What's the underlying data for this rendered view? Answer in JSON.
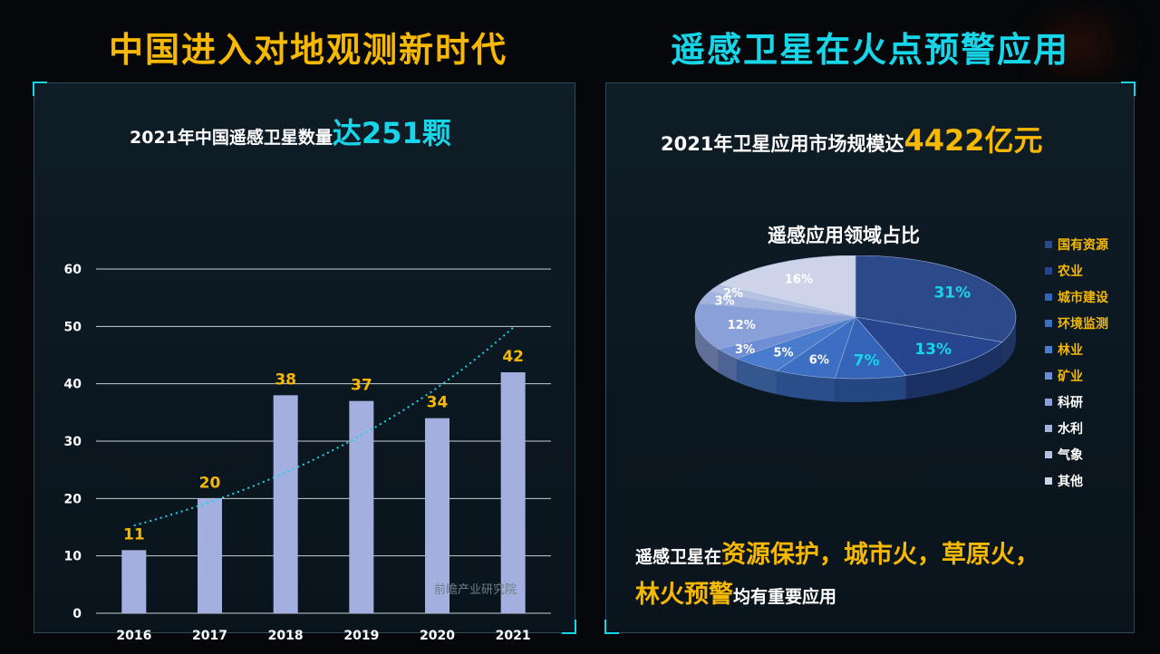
{
  "left": {
    "heading": "中国进入对地观测新时代",
    "subtitle_prefix": "2021年中国遥感卫星数量",
    "subtitle_highlight": "达251颗",
    "source": "前瞻产业研究院"
  },
  "right": {
    "heading": "遥感卫星在火点预警应用",
    "subtitle_prefix": "2021年卫星应用市场规模达",
    "subtitle_highlight": "4422亿元",
    "pie_title": "遥感应用领域占比",
    "bottom_text": {
      "part1": "遥感卫星在",
      "highlight1": "资源保护，城市火，草原火，",
      "highlight2": "林火预警",
      "part2": "均有重要应用"
    }
  },
  "chart_data": [
    {
      "type": "bar",
      "categories": [
        "2016",
        "2017",
        "2018",
        "2019",
        "2020",
        "2021"
      ],
      "values": [
        11,
        20,
        38,
        37,
        34,
        42
      ],
      "ylim": [
        0,
        60
      ],
      "yticks": [
        0,
        10,
        20,
        30,
        40,
        50,
        60
      ],
      "grid": true,
      "trendline": "dotted exponential",
      "colors": {
        "bar": "#a3afdf",
        "label": "#f6b800",
        "trend": "#17d6ea"
      }
    },
    {
      "type": "pie",
      "style": "3d",
      "slices": [
        {
          "label": "国有资源",
          "value": 31,
          "color": "#2c4a8a"
        },
        {
          "label": "农业",
          "value": 13,
          "color": "#27458e"
        },
        {
          "label": "城市建设",
          "value": 7,
          "color": "#3364b8"
        },
        {
          "label": "环境监测",
          "value": 6,
          "color": "#3c6fc4"
        },
        {
          "label": "林业",
          "value": 5,
          "color": "#4a7ccd"
        },
        {
          "label": "矿业",
          "value": 3,
          "color": "#6d8ed4"
        },
        {
          "label": "科研",
          "value": 12,
          "color": "#8aa0d8"
        },
        {
          "label": "水利",
          "value": 3,
          "color": "#a2b3de"
        },
        {
          "label": "气象",
          "value": 2,
          "color": "#b6c2e2"
        },
        {
          "label": "其他",
          "value": 16,
          "color": "#cdd4ea"
        }
      ],
      "legend_colors": [
        "#f6b800",
        "#f6b800",
        "#f6b800",
        "#f6b800",
        "#f6b800",
        "#f6b800",
        "#ffffff",
        "#ffffff",
        "#ffffff",
        "#ffffff"
      ],
      "label_colors": [
        "#17d6ea",
        "#17d6ea",
        "#17d6ea",
        "#ffffff",
        "#ffffff",
        "#ffffff",
        "#ffffff",
        "#ffffff",
        "#ffffff",
        "#ffffff"
      ],
      "legend_placement": "right"
    }
  ]
}
